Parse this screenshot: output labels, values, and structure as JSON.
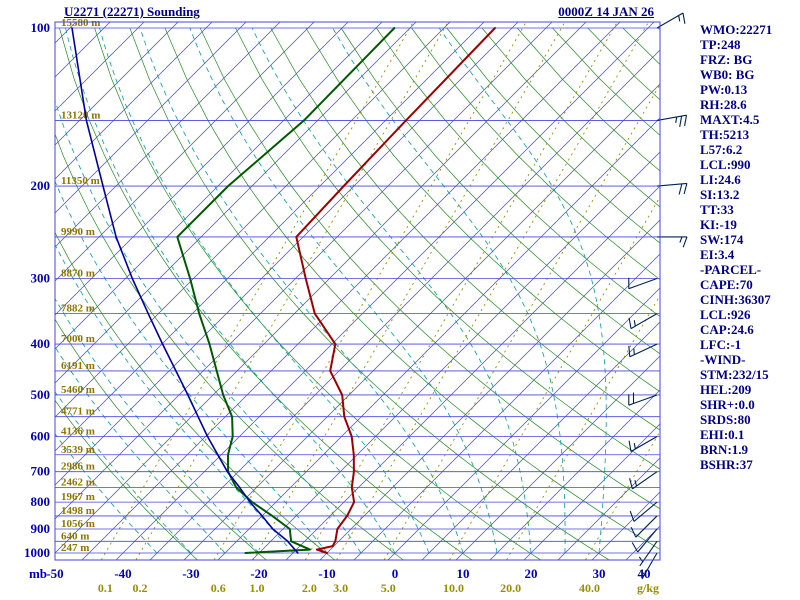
{
  "header": {
    "title": "U2271 (22271) Sounding",
    "datetime": "0000Z 14 JAN 26"
  },
  "panel": {
    "items": [
      "WMO:22271",
      "TP:248",
      "FRZ: BG",
      "WB0: BG",
      "PW:0.13",
      "RH:28.6",
      "MAXT:4.5",
      "TH:5213",
      "L57:6.2",
      "LCL:990",
      "LI:24.6",
      "SI:13.2",
      "TT:33",
      "KI:-19",
      "SW:174",
      "EI:3.4",
      "-PARCEL-",
      "CAPE:70",
      "CINH:36307",
      "LCL:926",
      "CAP:24.6",
      "LFC:-1",
      "-WIND-",
      "STM:232/15",
      "HEL:209",
      "SHR+:0.0",
      "SRDS:80",
      "EHI:0.1",
      "BRN:1.9",
      "BSHR:37"
    ]
  },
  "colors": {
    "axis_text": "#0000bb",
    "grid": "#4646dd",
    "dry_adiabat": "#1f8f1f",
    "moist_adiabat": "#00a0a0",
    "mixing_ratio": "#968f00",
    "heights": "#8f7600",
    "panel_text": "#000088",
    "temperature": "#a00000",
    "dewpoint": "#005a00",
    "wetbulb": "#0000a8",
    "wind": "#002255"
  },
  "chart_data": {
    "type": "line",
    "variant": "skew-t-log-p-sounding",
    "title": "U2271 (22271) Sounding",
    "timestamp": "0000Z 14 JAN 26",
    "pressure_axis_label": "mb",
    "mixing_axis_label": "g/kg",
    "pressure_ticks": [
      100,
      200,
      300,
      400,
      500,
      600,
      700,
      800,
      900,
      1000
    ],
    "isobars": [
      100,
      150,
      200,
      250,
      300,
      350,
      400,
      450,
      500,
      550,
      600,
      650,
      700,
      750,
      800,
      850,
      900,
      950,
      1000
    ],
    "temp_ticks": [
      -50,
      -40,
      -30,
      -20,
      -10,
      0,
      10,
      20,
      30,
      40
    ],
    "heights": [
      {
        "p": 100,
        "label": "15580 m"
      },
      {
        "p": 150,
        "label": "13120 m"
      },
      {
        "p": 200,
        "label": "11350 m"
      },
      {
        "p": 250,
        "label": "9990 m"
      },
      {
        "p": 300,
        "label": "8870 m"
      },
      {
        "p": 350,
        "label": "7882 m"
      },
      {
        "p": 400,
        "label": "7000 m"
      },
      {
        "p": 450,
        "label": "6191 m"
      },
      {
        "p": 500,
        "label": "5460 m"
      },
      {
        "p": 550,
        "label": "4771 m"
      },
      {
        "p": 600,
        "label": "4136 m"
      },
      {
        "p": 650,
        "label": "3539 m"
      },
      {
        "p": 700,
        "label": "2986 m"
      },
      {
        "p": 750,
        "label": "2462 m"
      },
      {
        "p": 800,
        "label": "1967 m"
      },
      {
        "p": 850,
        "label": "1498 m"
      },
      {
        "p": 900,
        "label": "1056 m"
      },
      {
        "p": 950,
        "label": "640 m"
      },
      {
        "p": 1000,
        "label": "247 m"
      }
    ],
    "mixing_ratios": [
      {
        "label": "0.1",
        "t1000": -42.6
      },
      {
        "label": "0.2",
        "t1000": -37.5
      },
      {
        "label": "0.6",
        "t1000": -26.0
      },
      {
        "label": "1.0",
        "t1000": -20.3
      },
      {
        "label": "2.0",
        "t1000": -12.6
      },
      {
        "label": "3.0",
        "t1000": -8.0
      },
      {
        "label": "5.0",
        "t1000": -1.0
      },
      {
        "label": "10.0",
        "t1000": 8.6
      },
      {
        "label": "20.0",
        "t1000": 17.0
      },
      {
        "label": "40.0",
        "t1000": 28.6
      }
    ],
    "grid": {
      "isotherm_min": -125,
      "isotherm_max": 40,
      "isotherm_step": 5,
      "dry_adiabat_minK": 243,
      "dry_adiabat_maxK": 453,
      "dry_adiabat_stepK": 10,
      "moist_adiabat_minC": -35,
      "moist_adiabat_maxC": 30,
      "moist_adiabat_stepC": 5,
      "mixing_line_slope": 0.58,
      "pressure_log": true,
      "ylim": [
        1000,
        100
      ],
      "xlim_surface_temp": [
        -50,
        40
      ]
    },
    "series": [
      {
        "name": "temperature",
        "color_key": "temperature",
        "width": 2,
        "points": [
          [
            100,
            -62.5
          ],
          [
            150,
            -62
          ],
          [
            200,
            -61.5
          ],
          [
            250,
            -61
          ],
          [
            300,
            -53.5
          ],
          [
            350,
            -47
          ],
          [
            400,
            -39.5
          ],
          [
            450,
            -36.3
          ],
          [
            500,
            -31
          ],
          [
            550,
            -27.5
          ],
          [
            600,
            -23.5
          ],
          [
            650,
            -20.5
          ],
          [
            700,
            -18
          ],
          [
            750,
            -16
          ],
          [
            800,
            -13.5
          ],
          [
            850,
            -12.5
          ],
          [
            900,
            -12
          ],
          [
            950,
            -10.5
          ],
          [
            970,
            -10.2
          ],
          [
            985,
            -12
          ],
          [
            1000,
            -10
          ]
        ]
      },
      {
        "name": "dewpoint",
        "color_key": "dewpoint",
        "width": 2,
        "points": [
          [
            100,
            -77.3
          ],
          [
            150,
            -77
          ],
          [
            200,
            -78.5
          ],
          [
            250,
            -78.5
          ],
          [
            300,
            -70.5
          ],
          [
            350,
            -64
          ],
          [
            400,
            -58
          ],
          [
            450,
            -53
          ],
          [
            500,
            -48.5
          ],
          [
            550,
            -44
          ],
          [
            600,
            -41
          ],
          [
            650,
            -39
          ],
          [
            700,
            -36.5
          ],
          [
            750,
            -33
          ],
          [
            800,
            -28.5
          ],
          [
            850,
            -23.5
          ],
          [
            900,
            -19
          ],
          [
            950,
            -17
          ],
          [
            985,
            -13
          ],
          [
            1000,
            -22
          ]
        ]
      },
      {
        "name": "wet-bulb",
        "color_key": "wetbulb",
        "width": 1.6,
        "points": [
          [
            100,
            -124.7
          ],
          [
            150,
            -109
          ],
          [
            200,
            -96.9
          ],
          [
            250,
            -87.5
          ],
          [
            300,
            -79
          ],
          [
            350,
            -71.5
          ],
          [
            400,
            -64.9
          ],
          [
            450,
            -59
          ],
          [
            500,
            -53.7
          ],
          [
            550,
            -49
          ],
          [
            600,
            -44.7
          ],
          [
            650,
            -40.5
          ],
          [
            700,
            -36.6
          ],
          [
            750,
            -32.5
          ],
          [
            800,
            -28.8
          ],
          [
            850,
            -25
          ],
          [
            900,
            -21.5
          ],
          [
            950,
            -17.5
          ],
          [
            1000,
            -14.3
          ]
        ]
      }
    ],
    "winds": [
      {
        "p": 100,
        "dir": 60,
        "spd": 15
      },
      {
        "p": 150,
        "dir": 80,
        "spd": 25
      },
      {
        "p": 200,
        "dir": 85,
        "spd": 20
      },
      {
        "p": 250,
        "dir": 90,
        "spd": 15
      },
      {
        "p": 300,
        "dir": 250,
        "spd": 10
      },
      {
        "p": 350,
        "dir": 240,
        "spd": 15
      },
      {
        "p": 400,
        "dir": 245,
        "spd": 15
      },
      {
        "p": 500,
        "dir": 250,
        "spd": 20
      },
      {
        "p": 600,
        "dir": 240,
        "spd": 15
      },
      {
        "p": 700,
        "dir": 235,
        "spd": 15
      },
      {
        "p": 800,
        "dir": 230,
        "spd": 10
      },
      {
        "p": 850,
        "dir": 225,
        "spd": 10
      },
      {
        "p": 900,
        "dir": 220,
        "spd": 10
      },
      {
        "p": 950,
        "dir": 215,
        "spd": 5
      },
      {
        "p": 1000,
        "dir": 210,
        "spd": 5
      }
    ]
  }
}
